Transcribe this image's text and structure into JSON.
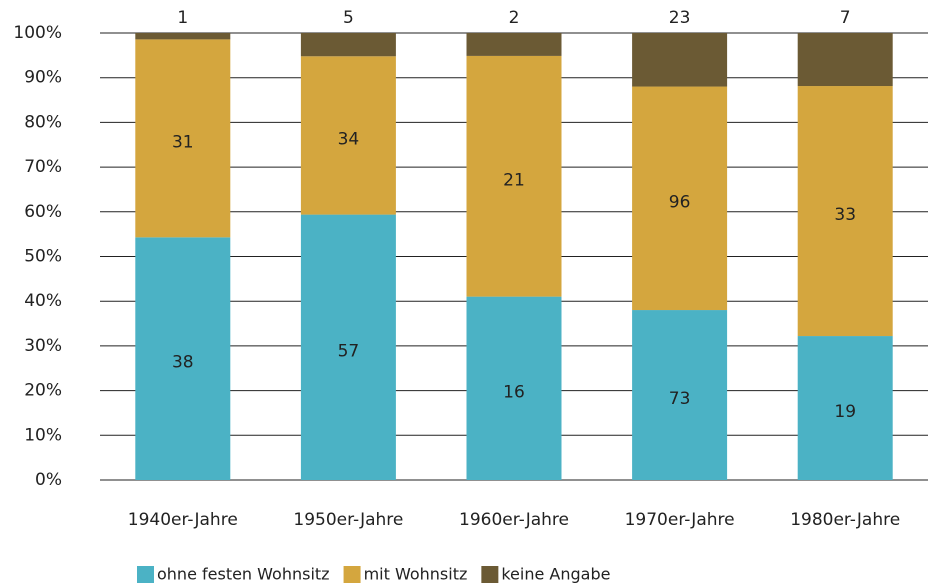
{
  "chart_data": {
    "type": "bar",
    "stacking": "percent",
    "categories": [
      "1940er-Jahre",
      "1950er-Jahre",
      "1960er-Jahre",
      "1970er-Jahre",
      "1980er-Jahre"
    ],
    "series": [
      {
        "name": "ohne festen Wohnsitz",
        "color": "#4bb2c5",
        "values": [
          38,
          57,
          16,
          73,
          19
        ]
      },
      {
        "name": "mit Wohnsitz",
        "color": "#d4a63e",
        "values": [
          31,
          34,
          21,
          96,
          33
        ]
      },
      {
        "name": "keine Angabe",
        "color": "#6b5a34",
        "values": [
          1,
          5,
          2,
          23,
          7
        ]
      }
    ],
    "ylim": [
      0,
      100
    ],
    "yticks": [
      {
        "value": 0,
        "label": "0%"
      },
      {
        "value": 10,
        "label": "10%"
      },
      {
        "value": 20,
        "label": "20%"
      },
      {
        "value": 30,
        "label": "30%"
      },
      {
        "value": 40,
        "label": "40%"
      },
      {
        "value": 50,
        "label": "50%"
      },
      {
        "value": 60,
        "label": "60%"
      },
      {
        "value": 70,
        "label": "70%"
      },
      {
        "value": 80,
        "label": "80%"
      },
      {
        "value": 90,
        "label": "90%"
      },
      {
        "value": 100,
        "label": "100%"
      }
    ],
    "grid": true,
    "legend": "bottom"
  }
}
